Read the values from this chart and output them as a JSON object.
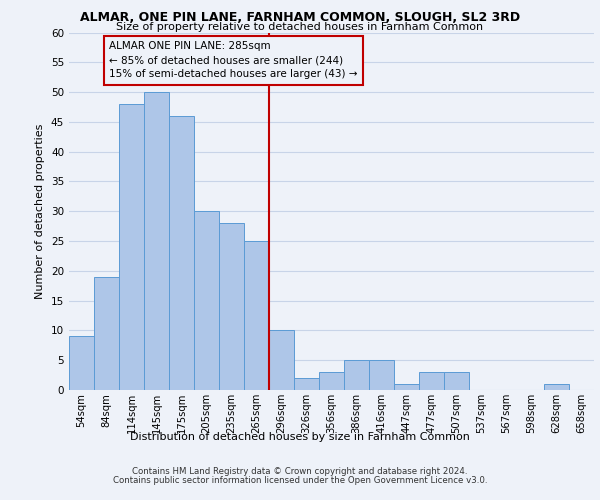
{
  "title": "ALMAR, ONE PIN LANE, FARNHAM COMMON, SLOUGH, SL2 3RD",
  "subtitle": "Size of property relative to detached houses in Farnham Common",
  "xlabel": "Distribution of detached houses by size in Farnham Common",
  "ylabel": "Number of detached properties",
  "categories": [
    "54sqm",
    "84sqm",
    "114sqm",
    "145sqm",
    "175sqm",
    "205sqm",
    "235sqm",
    "265sqm",
    "296sqm",
    "326sqm",
    "356sqm",
    "386sqm",
    "416sqm",
    "447sqm",
    "477sqm",
    "507sqm",
    "537sqm",
    "567sqm",
    "598sqm",
    "628sqm",
    "658sqm"
  ],
  "values": [
    9,
    19,
    48,
    50,
    46,
    30,
    28,
    25,
    10,
    2,
    3,
    5,
    5,
    1,
    3,
    3,
    0,
    0,
    0,
    1,
    0
  ],
  "bar_color": "#aec6e8",
  "bar_edge_color": "#5b9bd5",
  "grid_color": "#c8d4e8",
  "background_color": "#eef2f9",
  "annotation_line_color": "#c00000",
  "annotation_box_text": "ALMAR ONE PIN LANE: 285sqm\n← 85% of detached houses are smaller (244)\n15% of semi-detached houses are larger (43) →",
  "annotation_box_color": "#c00000",
  "ylim": [
    0,
    60
  ],
  "yticks": [
    0,
    5,
    10,
    15,
    20,
    25,
    30,
    35,
    40,
    45,
    50,
    55,
    60
  ],
  "footer1": "Contains HM Land Registry data © Crown copyright and database right 2024.",
  "footer2": "Contains public sector information licensed under the Open Government Licence v3.0."
}
